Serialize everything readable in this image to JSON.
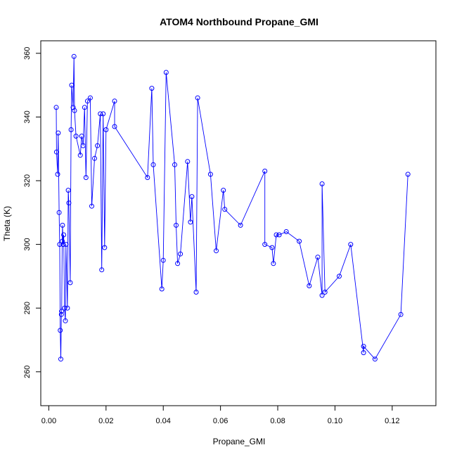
{
  "chart_data": {
    "type": "line",
    "title": "ATOM4 Northbound Propane_GMI",
    "xlabel": "Propane_GMI",
    "ylabel": "Theta (K)",
    "xlim": [
      0.0,
      0.125
    ],
    "ylim": [
      260,
      360
    ],
    "x_ticks": [
      0.0,
      0.02,
      0.04,
      0.06,
      0.08,
      0.1,
      0.12
    ],
    "x_tick_labels": [
      "0.00",
      "0.02",
      "0.04",
      "0.06",
      "0.08",
      "0.10",
      "0.12"
    ],
    "y_ticks": [
      260,
      280,
      300,
      320,
      340,
      360
    ],
    "y_tick_labels": [
      "260",
      "280",
      "300",
      "320",
      "340",
      "360"
    ],
    "grid": false,
    "legend": "none",
    "series_style": {
      "color": "#0000ff",
      "marker": "open-circle",
      "line": true
    },
    "x": [
      0.0026,
      0.0027,
      0.0031,
      0.0033,
      0.0036,
      0.0038,
      0.004,
      0.0042,
      0.0044,
      0.0045,
      0.0047,
      0.0048,
      0.005,
      0.0052,
      0.0055,
      0.0058,
      0.006,
      0.0065,
      0.0068,
      0.007,
      0.0075,
      0.0078,
      0.008,
      0.0085,
      0.0088,
      0.009,
      0.0095,
      0.011,
      0.0115,
      0.012,
      0.0125,
      0.013,
      0.0135,
      0.0145,
      0.015,
      0.016,
      0.017,
      0.018,
      0.0185,
      0.019,
      0.0195,
      0.02,
      0.023,
      0.023,
      0.0345,
      0.036,
      0.0365,
      0.0395,
      0.04,
      0.041,
      0.044,
      0.0445,
      0.045,
      0.046,
      0.0485,
      0.0495,
      0.05,
      0.0515,
      0.052,
      0.0565,
      0.0585,
      0.061,
      0.0615,
      0.067,
      0.0755,
      0.0755,
      0.078,
      0.0785,
      0.0795,
      0.0805,
      0.083,
      0.0875,
      0.091,
      0.094,
      0.0955,
      0.0955,
      0.0965,
      0.1015,
      0.1055,
      0.11,
      0.11,
      0.114,
      0.123,
      0.1255
    ],
    "y": [
      343,
      329,
      322,
      335,
      310,
      300,
      273,
      264,
      278,
      279,
      301,
      306,
      300,
      303,
      280,
      276,
      300,
      280,
      317,
      313,
      288,
      336,
      350,
      343,
      359,
      342,
      334,
      328,
      334,
      331,
      343,
      321,
      345,
      346,
      312,
      327,
      331,
      341,
      292,
      341,
      299,
      336,
      345,
      337,
      321,
      349,
      325,
      286,
      295,
      354,
      325,
      306,
      294,
      297,
      326,
      307,
      315,
      285,
      346,
      322,
      298,
      317,
      311,
      306,
      323,
      300,
      299,
      294,
      303,
      303,
      304,
      301,
      287,
      296,
      284,
      319,
      285,
      290,
      300,
      266,
      268,
      264,
      278,
      322
    ]
  }
}
